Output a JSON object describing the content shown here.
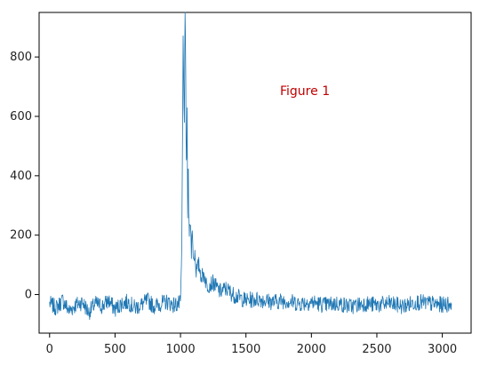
{
  "chart_data": {
    "type": "line",
    "title": "",
    "xlabel": "",
    "ylabel": "",
    "xlim": [
      -80,
      3220
    ],
    "ylim": [
      -130,
      950
    ],
    "x_ticks": [
      0,
      500,
      1000,
      1500,
      2000,
      2500,
      3000
    ],
    "y_ticks": [
      0,
      200,
      400,
      600,
      800
    ],
    "grid": false,
    "legend": "none",
    "annotation": "Figure 1",
    "series": [
      {
        "color": "#1f77b4",
        "x": [
          0,
          50,
          100,
          150,
          200,
          250,
          300,
          350,
          400,
          450,
          500,
          550,
          600,
          650,
          700,
          750,
          800,
          850,
          900,
          950,
          1000,
          1010,
          1020,
          1030,
          1035,
          1040,
          1045,
          1050,
          1055,
          1060,
          1065,
          1070,
          1080,
          1090,
          1100,
          1110,
          1120,
          1140,
          1160,
          1180,
          1200,
          1250,
          1300,
          1350,
          1400,
          1450,
          1500,
          1600,
          1700,
          1800,
          1900,
          2000,
          2100,
          2200,
          2300,
          2400,
          2500,
          2600,
          2700,
          2800,
          2900,
          3000,
          3070
        ],
        "y": [
          -30,
          -45,
          -20,
          -55,
          -35,
          -25,
          -60,
          -30,
          -40,
          -20,
          -50,
          -30,
          -25,
          -45,
          -35,
          -20,
          -40,
          -30,
          -25,
          -35,
          -30,
          150,
          830,
          610,
          900,
          720,
          430,
          560,
          300,
          420,
          220,
          300,
          160,
          200,
          120,
          140,
          80,
          100,
          60,
          70,
          30,
          40,
          10,
          20,
          0,
          -10,
          -20,
          -15,
          -25,
          -20,
          -30,
          -25,
          -35,
          -30,
          -40,
          -30,
          -35,
          -30,
          -40,
          -25,
          -30,
          -35,
          -30
        ]
      }
    ]
  }
}
